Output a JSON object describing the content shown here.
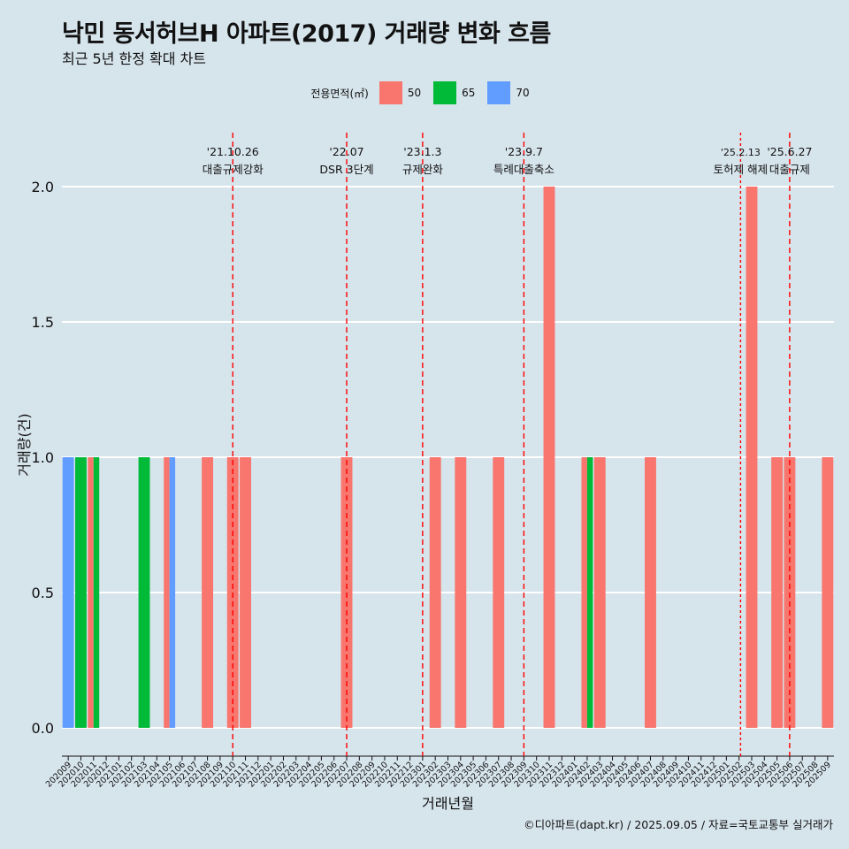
{
  "title": "낙민 동서허브H 아파트(2017) 거래량 변화 흐름",
  "subtitle": "최근 5년 한정 확대 차트",
  "caption": "©디아파트(dapt.kr) / 2025.09.05 / 자료=국토교통부 실거래가",
  "legend": {
    "title": "전용면적(㎡)",
    "items": [
      {
        "label": "50",
        "color": "#f8766d"
      },
      {
        "label": "65",
        "color": "#00ba38"
      },
      {
        "label": "70",
        "color": "#619cff"
      }
    ]
  },
  "chart_data": {
    "type": "bar",
    "stacking": "dodge",
    "xlabel": "거래년월",
    "ylabel": "거래량(건)",
    "ylim": [
      0,
      2
    ],
    "yticks": [
      0.0,
      0.5,
      1.0,
      1.5,
      2.0
    ],
    "yticklabels": [
      "0.0",
      "0.5",
      "1.0",
      "1.5",
      "2.0"
    ],
    "categories": [
      "202009",
      "202010",
      "202011",
      "202012",
      "202101",
      "202102",
      "202103",
      "202104",
      "202105",
      "202106",
      "202107",
      "202108",
      "202109",
      "202110",
      "202111",
      "202112",
      "202201",
      "202202",
      "202203",
      "202204",
      "202205",
      "202206",
      "202207",
      "202208",
      "202209",
      "202210",
      "202211",
      "202212",
      "202301",
      "202302",
      "202303",
      "202304",
      "202305",
      "202306",
      "202307",
      "202308",
      "202309",
      "202310",
      "202311",
      "202312",
      "202401",
      "202402",
      "202403",
      "202404",
      "202405",
      "202406",
      "202407",
      "202408",
      "202409",
      "202410",
      "202411",
      "202412",
      "202501",
      "202502",
      "202503",
      "202504",
      "202505",
      "202506",
      "202507",
      "202508",
      "202509"
    ],
    "series": [
      {
        "name": "50",
        "color": "#f8766d",
        "values": {
          "202011": 1,
          "202105": 1,
          "202108": 1,
          "202110": 1,
          "202111": 1,
          "202207": 1,
          "202302": 1,
          "202304": 1,
          "202307": 1,
          "202311": 2,
          "202402": 1,
          "202403": 1,
          "202407": 1,
          "202503": 2,
          "202505": 1,
          "202506": 1,
          "202509": 1
        }
      },
      {
        "name": "65",
        "color": "#00ba38",
        "values": {
          "202010": 1,
          "202011": 1,
          "202103": 1,
          "202402": 1
        }
      },
      {
        "name": "70",
        "color": "#619cff",
        "values": {
          "202009": 1,
          "202105": 1
        }
      }
    ],
    "bar_groups": {
      "202011": [
        "50",
        "65"
      ],
      "202105": [
        "50",
        "70"
      ],
      "202402": [
        "50",
        "65"
      ]
    },
    "annotations": [
      {
        "at": "202110",
        "offset": 0.0,
        "date": "'21.10.26",
        "text": "대출규제강화",
        "dash": "long"
      },
      {
        "at": "202207",
        "offset": 0.0,
        "date": "'22.07",
        "text": "DSR 3단계",
        "dash": "long"
      },
      {
        "at": "202301",
        "offset": 0.0,
        "date": "'23.1.3",
        "text": "규제완화",
        "dash": "long"
      },
      {
        "at": "202309",
        "offset": 0.0,
        "date": "'23.9.7",
        "text": "특례대출축소",
        "dash": "long"
      },
      {
        "at": "202502",
        "offset": 0.12,
        "date": "'25.2.13",
        "text": "토허제 해제",
        "dash": "short"
      },
      {
        "at": "202506",
        "offset": 0.0,
        "date": "'25.6.27",
        "text": "대출규제",
        "dash": "long"
      }
    ]
  }
}
